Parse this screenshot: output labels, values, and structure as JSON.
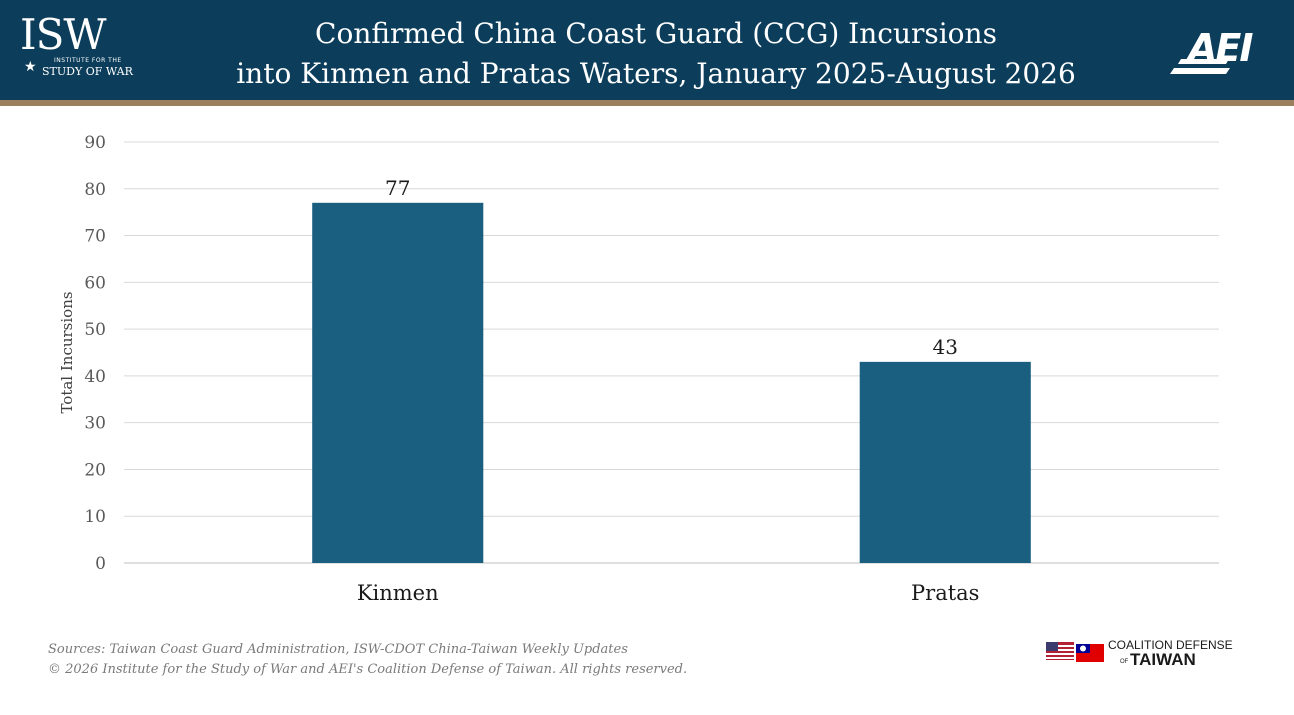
{
  "header": {
    "title_line1": "Confirmed China Coast Guard (CCG) Incursions",
    "title_line2": "into Kinmen and Pratas Waters, January 2025-August 2026",
    "isw_logo": {
      "mark": "ISW",
      "line1": "INSTITUTE FOR THE",
      "line2": "STUDY OF WAR",
      "icon": "star-icon"
    },
    "aei_logo": {
      "mark": "AEI"
    },
    "colors": {
      "header_bg": "#0c3e5c",
      "stripe": "#9a805c"
    }
  },
  "chart_data": {
    "type": "bar",
    "title": "Confirmed China Coast Guard (CCG) Incursions into Kinmen and Pratas Waters, January 2025-August 2026",
    "categories": [
      "Kinmen",
      "Pratas"
    ],
    "values": [
      77,
      43
    ],
    "data_labels": [
      "77",
      "43"
    ],
    "xlabel": "",
    "ylabel": "Total Incursions",
    "ylim": [
      0,
      90
    ],
    "yticks": [
      0,
      10,
      20,
      30,
      40,
      50,
      60,
      70,
      80,
      90
    ],
    "grid": true,
    "legend": "none",
    "bar_color": "#1a5f80"
  },
  "footer": {
    "sources": "Sources: Taiwan Coast Guard Administration, ISW-CDOT China-Taiwan Weekly Updates",
    "copyright": "© 2026 Institute for the Study of War and AEI's Coalition Defense of Taiwan. All rights reserved.",
    "coalition_logo": {
      "line1": "COALITION DEFENSE",
      "of": "OF",
      "line2": "TAIWAN",
      "icons": [
        "us-flag-icon",
        "taiwan-flag-icon"
      ]
    }
  }
}
